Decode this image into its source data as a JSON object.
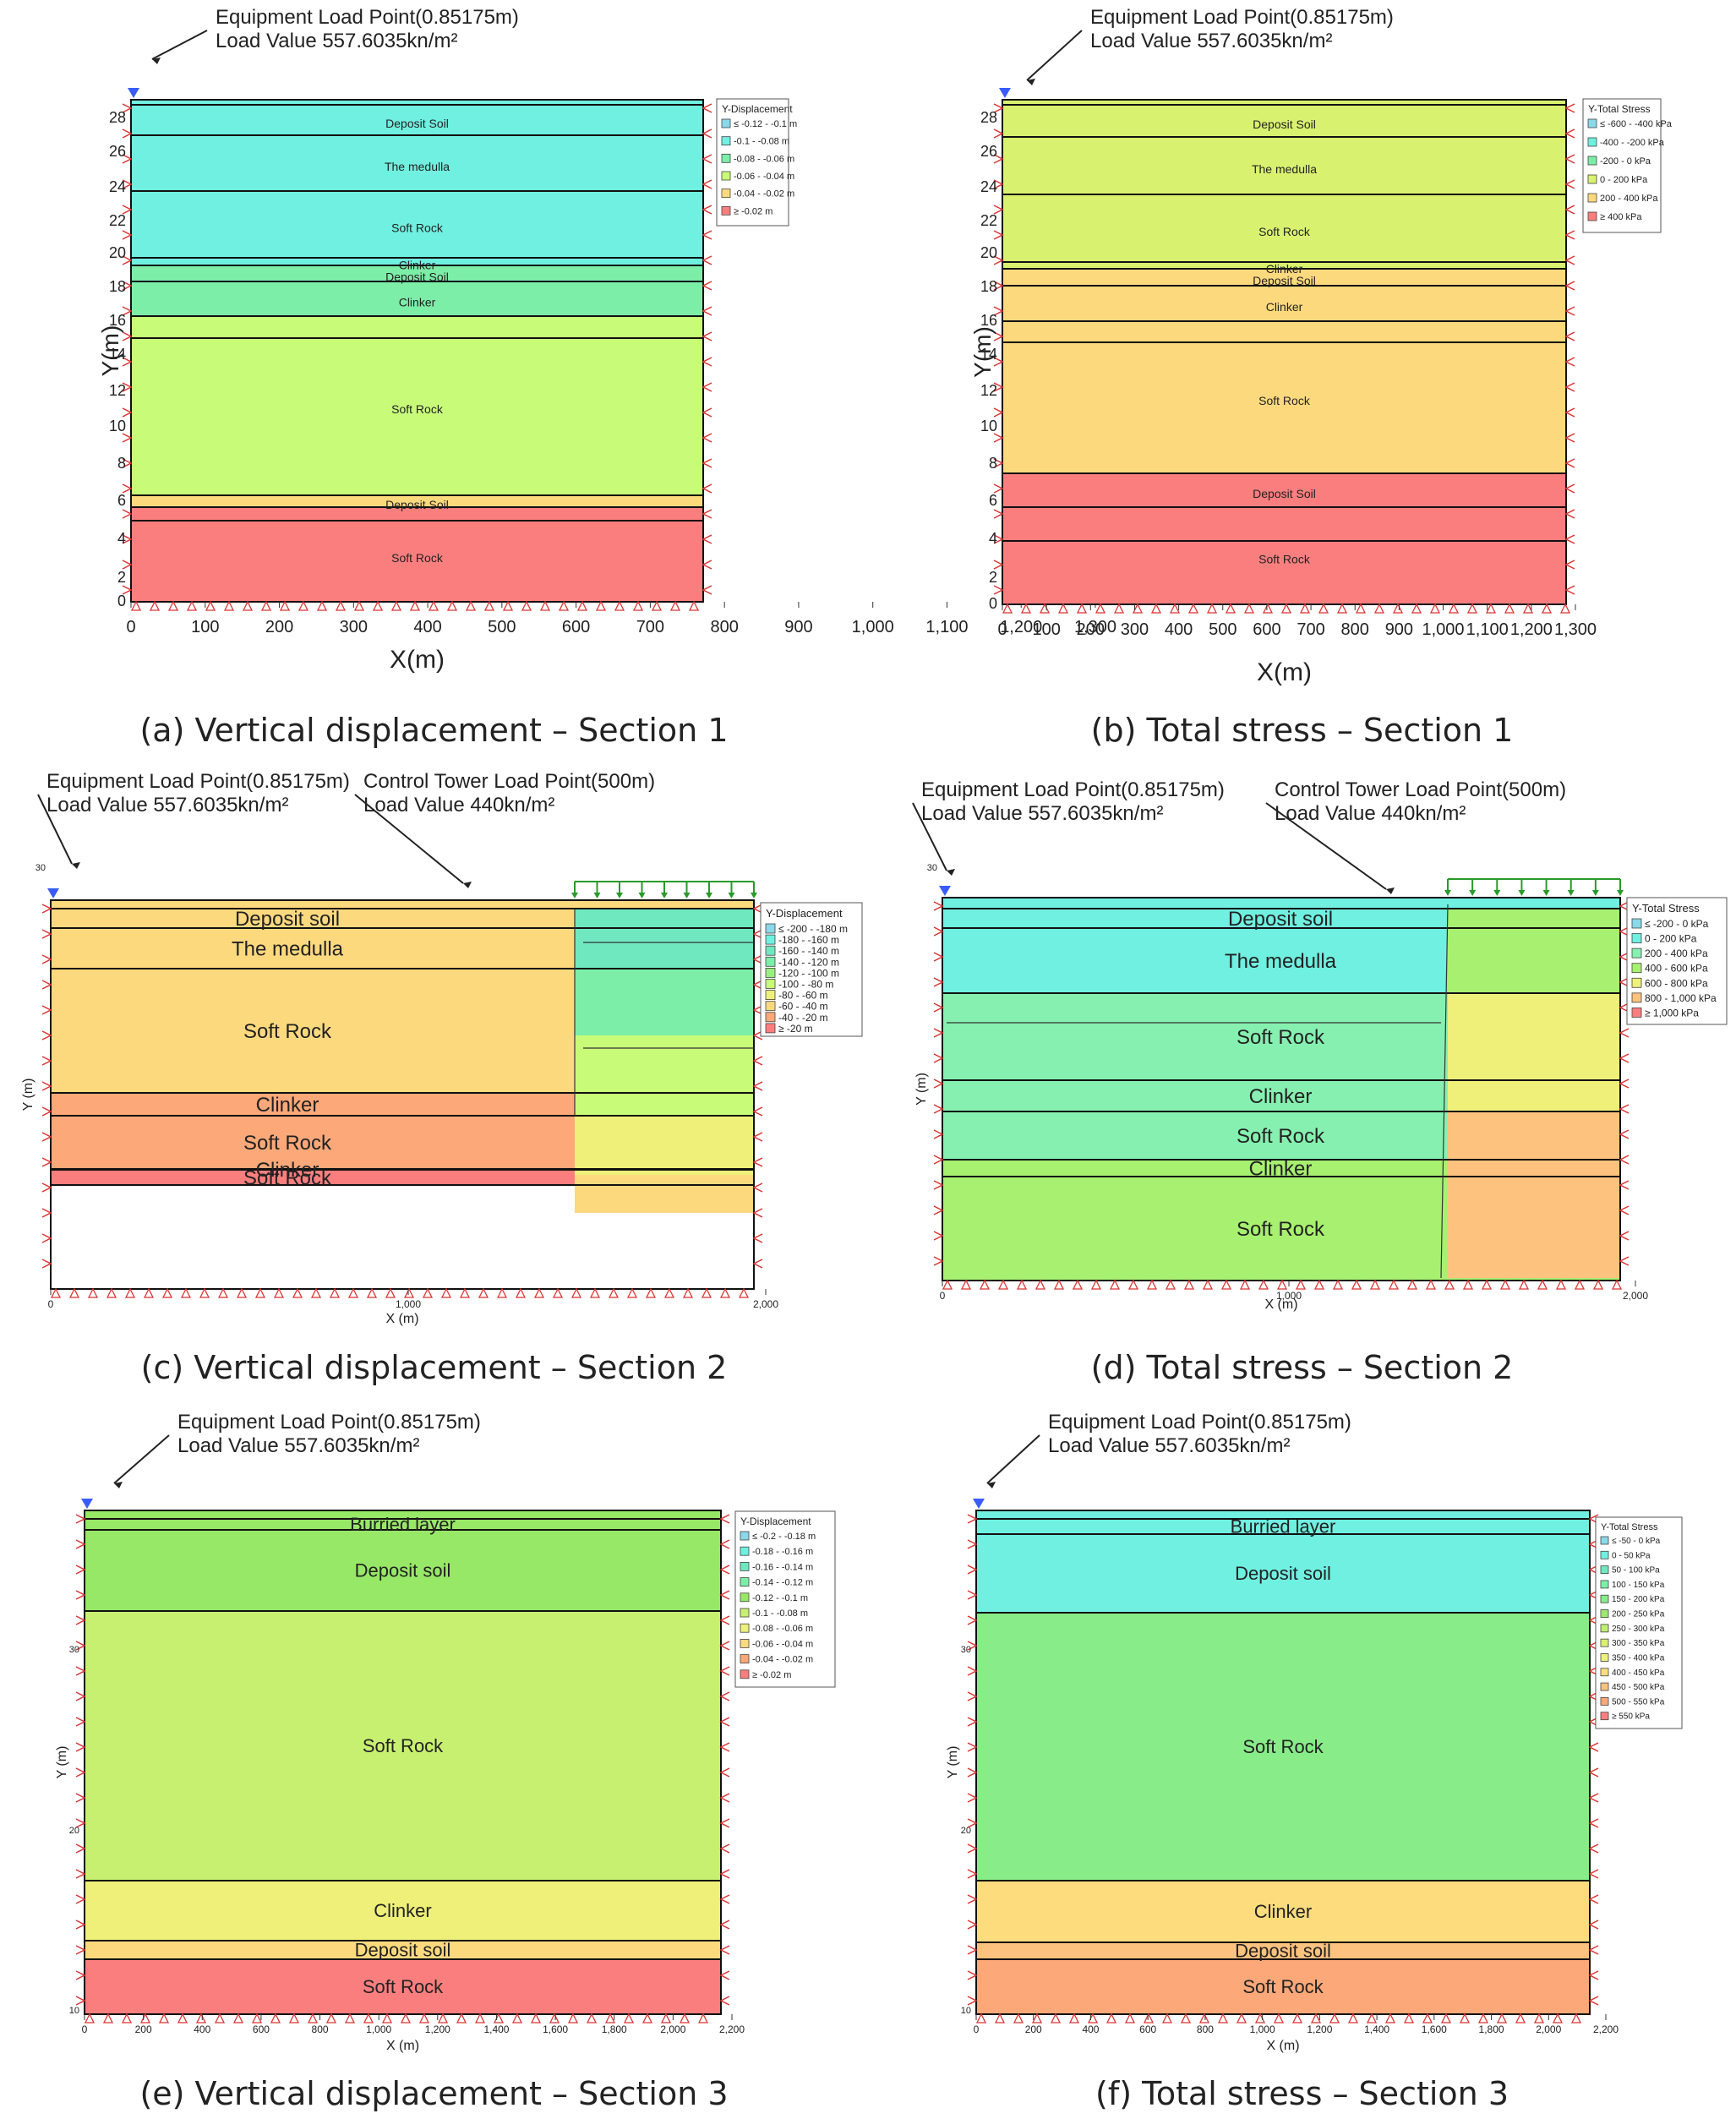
{
  "panels": [
    {
      "id": "a",
      "caption": "(a) Vertical displacement – Section 1",
      "loads": [
        {
          "line1": "Equipment Load Point(0.85175m)",
          "line2": "Load Value 557.6035kn/m²"
        }
      ],
      "legend_title": "Y-Displacement",
      "legend_items": [
        {
          "label": "≤ -0.12 - -0.1 m",
          "color": "#8ad8ea"
        },
        {
          "label": "-0.1 - -0.08 m",
          "color": "#6ff0e0"
        },
        {
          "label": "-0.08 - -0.06 m",
          "color": "#7ceea8"
        },
        {
          "label": "-0.06 - -0.04 m",
          "color": "#c8fc78"
        },
        {
          "label": "-0.04 - -0.02 m",
          "color": "#fdd97e"
        },
        {
          "label": "≥ -0.02 m",
          "color": "#fb7e7e"
        }
      ],
      "layers": [
        {
          "name": "Deposit Soil",
          "color": "#6ff0e0"
        },
        {
          "name": "The medulla",
          "color": "#6ff0e0"
        },
        {
          "name": "Soft Rock",
          "color": "#6ff0e0"
        },
        {
          "name": "Clinker",
          "color": "#6ff0e0"
        },
        {
          "name": "Deposit Soil",
          "color": "#7ceea8"
        },
        {
          "name": "Clinker",
          "color": "#7ceea8"
        },
        {
          "name": "Soft Rock",
          "color": "#c8fc78"
        },
        {
          "name": "Deposit Soil",
          "color": "#fdd97e"
        },
        {
          "name": "Soft Rock",
          "color": "#fb7e7e"
        }
      ],
      "xlabel": "X(m)",
      "ylabel": "Y(m)",
      "xticks": [
        "0",
        "100",
        "200",
        "300",
        "400",
        "500",
        "600",
        "700",
        "800",
        "900",
        "1,000",
        "1,100",
        "1,200",
        "1,300"
      ],
      "yticks": [
        "0",
        "2",
        "4",
        "6",
        "8",
        "10",
        "12",
        "14",
        "16",
        "18",
        "20",
        "22",
        "24",
        "26",
        "28"
      ]
    },
    {
      "id": "b",
      "caption": "(b) Total stress – Section 1",
      "loads": [
        {
          "line1": "Equipment Load Point(0.85175m)",
          "line2": "Load Value 557.6035kn/m²"
        }
      ],
      "legend_title": "Y-Total Stress",
      "legend_items": [
        {
          "label": "≤ -600 - -400 kPa",
          "color": "#8ad8ea"
        },
        {
          "label": "-400 - -200 kPa",
          "color": "#6ff0e0"
        },
        {
          "label": "-200 - 0 kPa",
          "color": "#7ceea8"
        },
        {
          "label": "0 - 200 kPa",
          "color": "#d8f270"
        },
        {
          "label": "200 - 400 kPa",
          "color": "#fdd97e"
        },
        {
          "label": "≥ 400 kPa",
          "color": "#fb7e7e"
        }
      ],
      "layers": [
        {
          "name": "Deposit Soil",
          "color": "#d8f270"
        },
        {
          "name": "The medulla",
          "color": "#d8f270"
        },
        {
          "name": "Soft Rock",
          "color": "#d8f270"
        },
        {
          "name": "Clinker",
          "color": "#d8f270"
        },
        {
          "name": "Deposit Soil",
          "color": "#fdd97e"
        },
        {
          "name": "Clinker",
          "color": "#fdd97e"
        },
        {
          "name": "Soft Rock",
          "color": "#fdd97e"
        },
        {
          "name": "Deposit Soil",
          "color": "#fb7e7e"
        },
        {
          "name": "Soft Rock",
          "color": "#fb7e7e"
        }
      ],
      "xlabel": "X(m)",
      "ylabel": "Y(m)",
      "xticks": [
        "0",
        "100",
        "200",
        "300",
        "400",
        "500",
        "600",
        "700",
        "800",
        "900",
        "1,000",
        "1,100",
        "1,200",
        "1,300"
      ],
      "yticks": [
        "0",
        "2",
        "4",
        "6",
        "8",
        "10",
        "12",
        "14",
        "16",
        "18",
        "20",
        "22",
        "24",
        "26",
        "28"
      ]
    },
    {
      "id": "c",
      "caption": "(c) Vertical displacement – Section 2",
      "loads": [
        {
          "line1": "Equipment Load Point(0.85175m)",
          "line2": "Load Value 557.6035kn/m²"
        },
        {
          "line1": "Control Tower Load Point(500m)",
          "line2": "Load Value 440kn/m²"
        }
      ],
      "legend_title": "Y-Displacement",
      "legend_items": [
        {
          "label": "≤ -200 - -180 m",
          "color": "#8ad8ea"
        },
        {
          "label": "-180 - -160 m",
          "color": "#6ff0e0"
        },
        {
          "label": "-160 - -140 m",
          "color": "#6fe8c0"
        },
        {
          "label": "-140 - -120 m",
          "color": "#7ceea8"
        },
        {
          "label": "-120 - -100 m",
          "color": "#98f07e"
        },
        {
          "label": "-100 - -80 m",
          "color": "#c8fc78"
        },
        {
          "label": "-80 - -60 m",
          "color": "#eef07a"
        },
        {
          "label": "-60 - -40 m",
          "color": "#fdd97e"
        },
        {
          "label": "-40 - -20 m",
          "color": "#fca878"
        },
        {
          "label": "≥ -20 m",
          "color": "#fb7e7e"
        }
      ],
      "layers": [
        {
          "name": "Deposit soil",
          "color": "#fdd97e"
        },
        {
          "name": "The medulla",
          "color": "#fdd97e"
        },
        {
          "name": "Soft Rock",
          "color": "#fdd97e"
        },
        {
          "name": "Clinker",
          "color": "#fca878"
        },
        {
          "name": "Soft Rock",
          "color": "#fca878"
        },
        {
          "name": "Clinker",
          "color": "#fb7e7e"
        },
        {
          "name": "Soft Rock",
          "color": "#fb7e7e"
        }
      ],
      "xlabel": "X (m)",
      "ylabel": "Y (m)",
      "xticks": [
        "0",
        "1,000",
        "2,000"
      ],
      "yticks": [
        "30"
      ]
    },
    {
      "id": "d",
      "caption": "(d) Total stress – Section 2",
      "loads": [
        {
          "line1": "Equipment Load Point(0.85175m)",
          "line2": "Load Value 557.6035kn/m²"
        },
        {
          "line1": "Control Tower Load Point(500m)",
          "line2": "Load Value 440kn/m²"
        }
      ],
      "legend_title": "Y-Total Stress",
      "legend_items": [
        {
          "label": "≤ -200 - 0 kPa",
          "color": "#8ad8ea"
        },
        {
          "label": "0 - 200 kPa",
          "color": "#6ff0e0"
        },
        {
          "label": "200 - 400 kPa",
          "color": "#86f0b0"
        },
        {
          "label": "400 - 600 kPa",
          "color": "#a8f070"
        },
        {
          "label": "600 - 800 kPa",
          "color": "#eef07a"
        },
        {
          "label": "800 - 1,000 kPa",
          "color": "#fdc27e"
        },
        {
          "label": "≥ 1,000 kPa",
          "color": "#fb7e7e"
        }
      ],
      "layers": [
        {
          "name": "Deposit soil",
          "color": "#6ff0e0"
        },
        {
          "name": "The medulla",
          "color": "#6ff0e0"
        },
        {
          "name": "Soft Rock",
          "color": "#86f0b0"
        },
        {
          "name": "Clinker",
          "color": "#86f0b0"
        },
        {
          "name": "Soft Rock",
          "color": "#86f0b0"
        },
        {
          "name": "Clinker",
          "color": "#a8f070"
        },
        {
          "name": "Soft Rock",
          "color": "#a8f070"
        }
      ],
      "xlabel": "X (m)",
      "ylabel": "Y (m)",
      "xticks": [
        "0",
        "1,000",
        "2,000"
      ],
      "yticks": [
        "30"
      ]
    },
    {
      "id": "e",
      "caption": "(e) Vertical displacement – Section 3",
      "loads": [
        {
          "line1": "Equipment Load Point(0.85175m)",
          "line2": "Load Value 557.6035kn/m²"
        }
      ],
      "legend_title": "Y-Displacement",
      "legend_items": [
        {
          "label": "≤ -0.2 - -0.18 m",
          "color": "#8ad8ea"
        },
        {
          "label": "-0.18 - -0.16 m",
          "color": "#6ff0e0"
        },
        {
          "label": "-0.16 - -0.14 m",
          "color": "#6fe8c0"
        },
        {
          "label": "-0.14 - -0.12 m",
          "color": "#7ceea8"
        },
        {
          "label": "-0.12 - -0.1 m",
          "color": "#98e868"
        },
        {
          "label": "-0.1 - -0.08 m",
          "color": "#c8f070"
        },
        {
          "label": "-0.08 - -0.06 m",
          "color": "#eef07a"
        },
        {
          "label": "-0.06 - -0.04 m",
          "color": "#fdd97e"
        },
        {
          "label": "-0.04 - -0.02 m",
          "color": "#fca878"
        },
        {
          "label": "≥ -0.02 m",
          "color": "#fb7e7e"
        }
      ],
      "layers": [
        {
          "name": "Burried layer",
          "color": "#98e868"
        },
        {
          "name": "Deposit soil",
          "color": "#98e868"
        },
        {
          "name": "Soft Rock",
          "color": "#c8f070"
        },
        {
          "name": "Clinker",
          "color": "#eef07a"
        },
        {
          "name": "Deposit soil",
          "color": "#fdd97e"
        },
        {
          "name": "Soft Rock",
          "color": "#fb7e7e"
        }
      ],
      "xlabel": "X (m)",
      "ylabel": "Y (m)",
      "xticks": [
        "0",
        "200",
        "400",
        "600",
        "800",
        "1,000",
        "1,200",
        "1,400",
        "1,600",
        "1,800",
        "2,000",
        "2,200"
      ],
      "yticks": [
        "10",
        "20",
        "30"
      ]
    },
    {
      "id": "f",
      "caption": "(f) Total stress – Section 3",
      "loads": [
        {
          "line1": "Equipment Load Point(0.85175m)",
          "line2": "Load Value 557.6035kn/m²"
        }
      ],
      "legend_title": "Y-Total Stress",
      "legend_items": [
        {
          "label": "≤ -50 - 0 kPa",
          "color": "#8ad8ea"
        },
        {
          "label": "0 - 50 kPa",
          "color": "#6ff0e0"
        },
        {
          "label": "50 - 100 kPa",
          "color": "#6fe8c0"
        },
        {
          "label": "100 - 150 kPa",
          "color": "#7ceea8"
        },
        {
          "label": "150 - 200 kPa",
          "color": "#88ec88"
        },
        {
          "label": "200 - 250 kPa",
          "color": "#9ee870"
        },
        {
          "label": "250 - 300 kPa",
          "color": "#c0ee70"
        },
        {
          "label": "300 - 350 kPa",
          "color": "#dcf070"
        },
        {
          "label": "350 - 400 kPa",
          "color": "#eef07a"
        },
        {
          "label": "400 - 450 kPa",
          "color": "#fddc7e"
        },
        {
          "label": "450 - 500 kPa",
          "color": "#fdc27e"
        },
        {
          "label": "500 - 550 kPa",
          "color": "#fca878"
        },
        {
          "label": "≥ 550 kPa",
          "color": "#fb7e7e"
        }
      ],
      "layers": [
        {
          "name": "Burried layer",
          "color": "#6ff0e0"
        },
        {
          "name": "Deposit soil",
          "color": "#6ff0e0"
        },
        {
          "name": "Soft Rock",
          "color": "#88ec88"
        },
        {
          "name": "Clinker",
          "color": "#fddc7e"
        },
        {
          "name": "Deposit soil",
          "color": "#fdc27e"
        },
        {
          "name": "Soft Rock",
          "color": "#fca878"
        }
      ],
      "xlabel": "X (m)",
      "ylabel": "Y (m)",
      "xticks": [
        "0",
        "200",
        "400",
        "600",
        "800",
        "1,000",
        "1,200",
        "1,400",
        "1,600",
        "1,800",
        "2,000",
        "2,200"
      ],
      "yticks": [
        "10",
        "20",
        "30"
      ]
    }
  ]
}
